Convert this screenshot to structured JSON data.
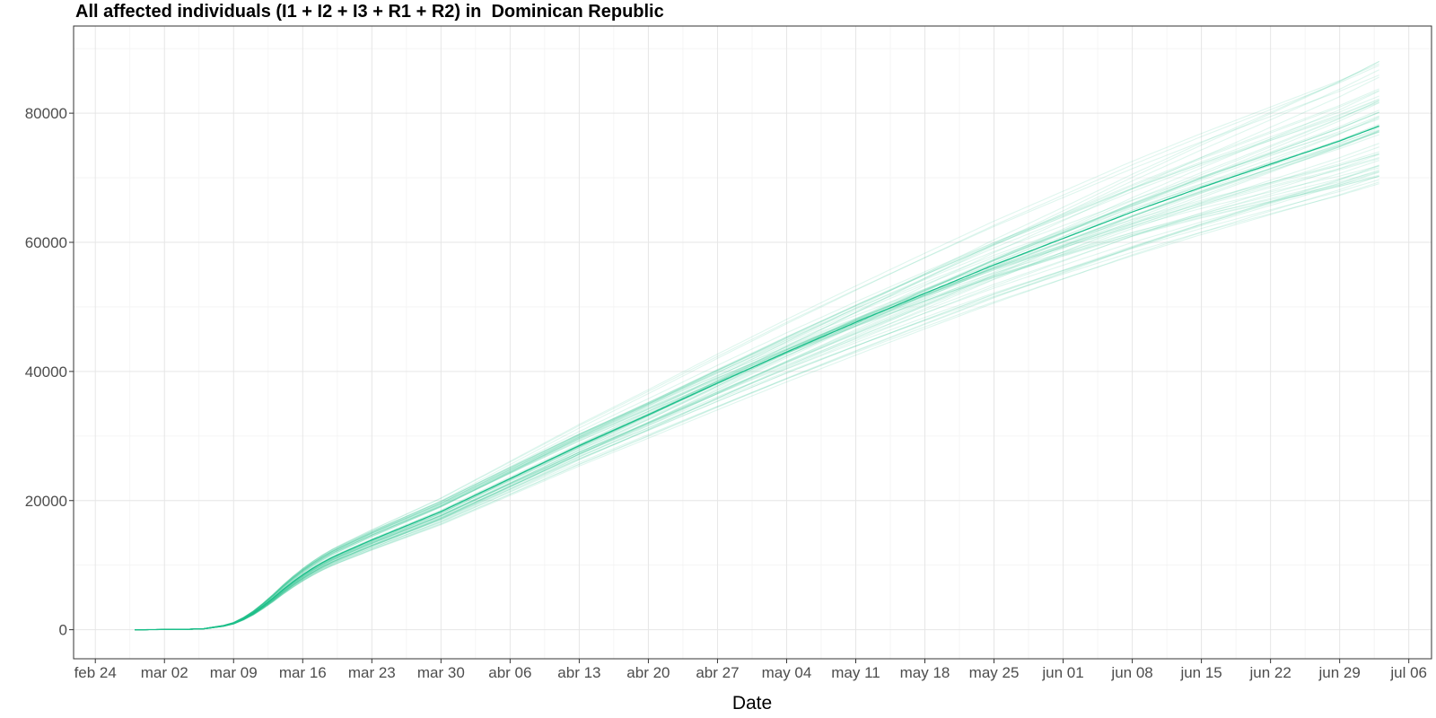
{
  "chart_data": {
    "type": "line",
    "title": "All affected individuals (I1 + I2 + I3 + R1 + R2) in  Dominican Republic",
    "xlabel": "Date",
    "ylabel": "",
    "x_tick_labels": [
      "feb 24",
      "mar 02",
      "mar 09",
      "mar 16",
      "mar 23",
      "mar 30",
      "abr 06",
      "abr 13",
      "abr 20",
      "abr 27",
      "may 04",
      "may 11",
      "may 18",
      "may 25",
      "jun 01",
      "jun 08",
      "jun 15",
      "jun 22",
      "jun 29",
      "jul 06"
    ],
    "x_ticks": [
      "2020-02-24",
      "2020-03-02",
      "2020-03-09",
      "2020-03-16",
      "2020-03-23",
      "2020-03-30",
      "2020-04-06",
      "2020-04-13",
      "2020-04-20",
      "2020-04-27",
      "2020-05-04",
      "2020-05-11",
      "2020-05-18",
      "2020-05-25",
      "2020-06-01",
      "2020-06-08",
      "2020-06-15",
      "2020-06-22",
      "2020-06-29",
      "2020-07-06"
    ],
    "y_ticks": [
      0,
      20000,
      40000,
      60000,
      80000
    ],
    "xlim": [
      "2020-02-21.8",
      "2020-07-08.3"
    ],
    "ylim": [
      -4500,
      93500
    ],
    "grid": true,
    "color": "#1abf8a",
    "median": {
      "x": [
        "2020-02-28",
        "2020-03-04",
        "2020-03-06",
        "2020-03-08",
        "2020-03-09",
        "2020-03-10",
        "2020-03-11",
        "2020-03-12",
        "2020-03-13",
        "2020-03-14",
        "2020-03-15",
        "2020-03-16",
        "2020-03-17",
        "2020-03-18",
        "2020-03-19",
        "2020-03-20",
        "2020-03-23",
        "2020-03-27",
        "2020-03-30",
        "2020-04-06",
        "2020-04-13",
        "2020-04-20",
        "2020-04-27",
        "2020-05-04",
        "2020-05-11",
        "2020-05-18",
        "2020-05-25",
        "2020-06-01",
        "2020-06-08",
        "2020-06-15",
        "2020-06-22",
        "2020-06-29",
        "2020-07-03"
      ],
      "y": [
        0,
        50,
        150,
        600,
        1000,
        1700,
        2600,
        3700,
        4900,
        6200,
        7400,
        8500,
        9500,
        10400,
        11200,
        11900,
        13900,
        16400,
        18300,
        23400,
        28500,
        33300,
        38200,
        43000,
        47600,
        52100,
        56500,
        60600,
        64700,
        68500,
        72100,
        75700,
        78000
      ]
    },
    "ensemble": {
      "count": 60,
      "end_range": [
        69000,
        89000
      ],
      "early_spread": 0.12
    }
  }
}
